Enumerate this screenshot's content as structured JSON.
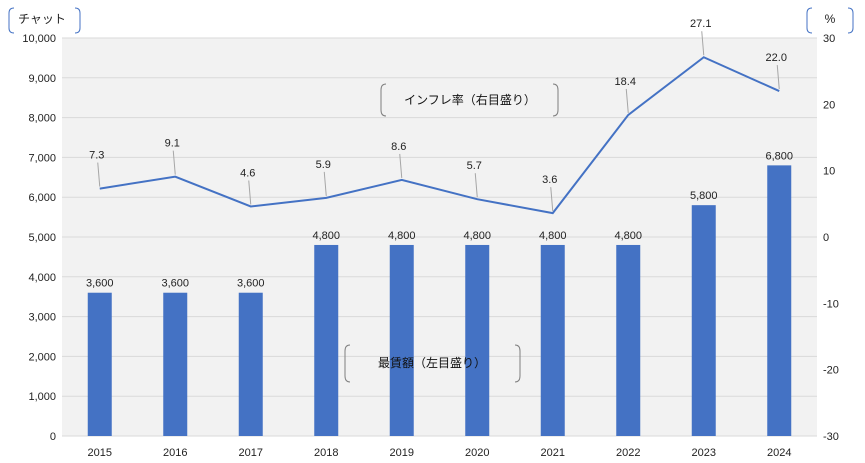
{
  "chart_data": {
    "type": "bar+line",
    "categories": [
      "2015",
      "2016",
      "2017",
      "2018",
      "2019",
      "2020",
      "2021",
      "2022",
      "2023",
      "2024"
    ],
    "series": [
      {
        "name": "最賃額（左目盛り）",
        "type": "bar",
        "axis": "left",
        "values": [
          3600,
          3600,
          3600,
          4800,
          4800,
          4800,
          4800,
          4800,
          5800,
          6800
        ],
        "labels": [
          "3,600",
          "3,600",
          "3,600",
          "4,800",
          "4,800",
          "4,800",
          "4,800",
          "4,800",
          "5,800",
          "6,800"
        ],
        "color": "#4472c4"
      },
      {
        "name": "インフレ率（右目盛り）",
        "type": "line",
        "axis": "right",
        "values": [
          7.3,
          9.1,
          4.6,
          5.9,
          8.6,
          5.7,
          3.6,
          18.4,
          27.1,
          22.0
        ],
        "labels": [
          "7.3",
          "9.1",
          "4.6",
          "5.9",
          "8.6",
          "5.7",
          "3.6",
          "18.4",
          "27.1",
          "22.0"
        ],
        "color": "#4472c4"
      }
    ],
    "left_axis": {
      "unit": "チャット",
      "ylim": [
        0,
        10000
      ],
      "ticks": [
        "0",
        "1,000",
        "2,000",
        "3,000",
        "4,000",
        "5,000",
        "6,000",
        "7,000",
        "8,000",
        "9,000",
        "10,000"
      ]
    },
    "right_axis": {
      "unit": "%",
      "ylim": [
        -30,
        30
      ],
      "ticks": [
        "-30",
        "-20",
        "-10",
        "0",
        "10",
        "20",
        "30"
      ]
    },
    "grid": true,
    "colors": {
      "plot_bg": "#f2f2f2",
      "grid": "#d9d9d9",
      "leader": "#a6a6a6",
      "bracket": "#7f7f7f",
      "unit_bracket": "#4472c4"
    }
  }
}
